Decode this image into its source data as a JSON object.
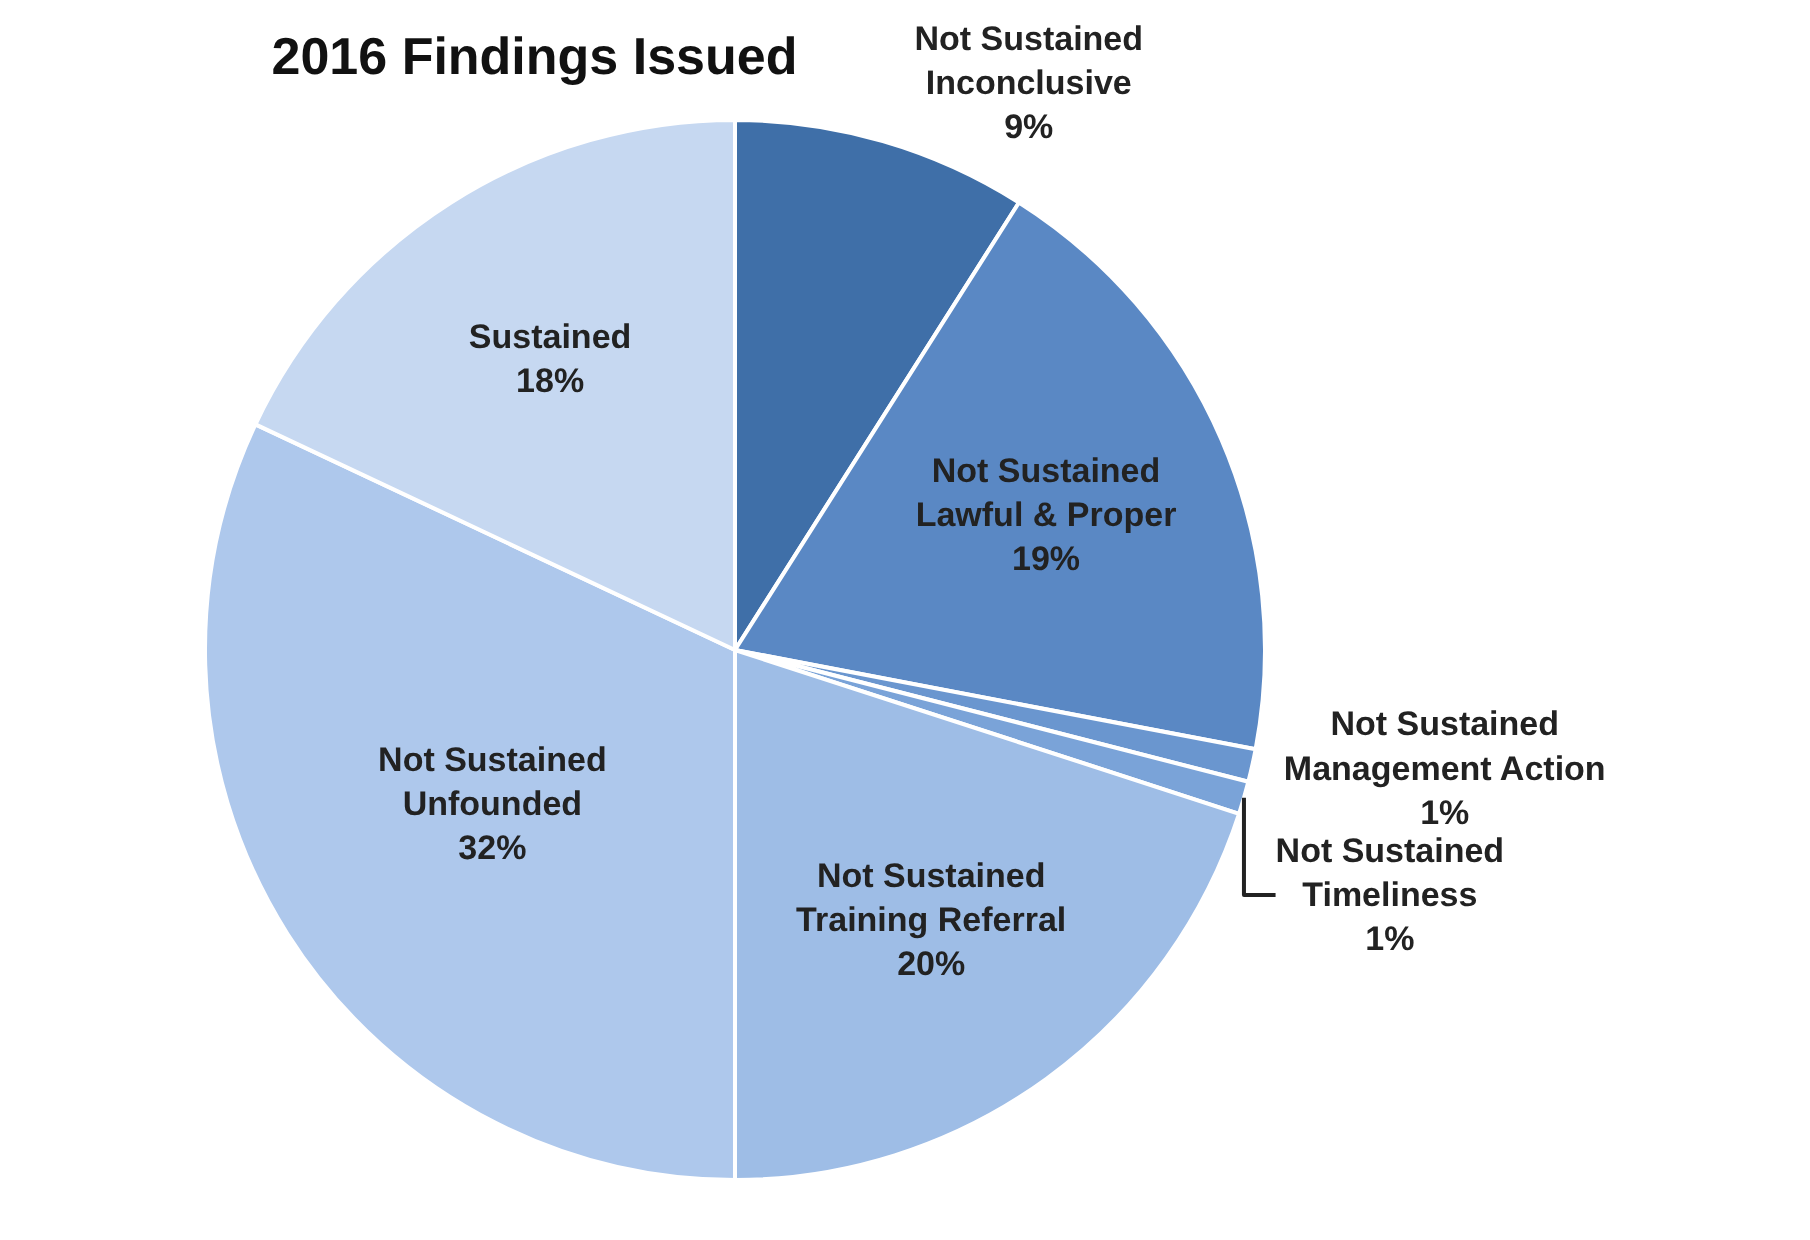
{
  "chart_data": {
    "type": "pie",
    "title": "2016 Findings Issued",
    "categories": [
      "Not Sustained\nInconclusive",
      "Not Sustained\nLawful & Proper",
      "Not Sustained\nManagement Action",
      "Not Sustained\nTimeliness",
      "Not Sustained\nTraining Referral",
      "Not Sustained\nUnfounded",
      "Sustained"
    ],
    "values": [
      9,
      19,
      1,
      1,
      20,
      32,
      18
    ],
    "value_labels": [
      "9%",
      "19%",
      "1%",
      "1%",
      "20%",
      "32%",
      "18%"
    ],
    "colors": [
      "#3f6fa8",
      "#5a88c4",
      "#6a96cf",
      "#7aa3d8",
      "#9ebde6",
      "#aec8ec",
      "#c6d8f1"
    ],
    "legend": false
  }
}
